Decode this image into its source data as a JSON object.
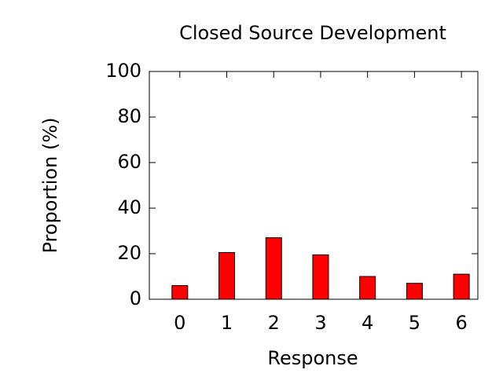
{
  "chart_data": {
    "type": "bar",
    "title": "Closed Source Development",
    "xlabel": "Response",
    "ylabel": "Proportion (%)",
    "categories": [
      "0",
      "1",
      "2",
      "3",
      "4",
      "5",
      "6"
    ],
    "values": [
      6,
      20.5,
      27,
      19.5,
      10,
      7,
      11
    ],
    "color": "#ff0000",
    "ylim": [
      0,
      100
    ],
    "yticks": [
      0,
      20,
      40,
      60,
      80,
      100
    ],
    "grid": false
  }
}
